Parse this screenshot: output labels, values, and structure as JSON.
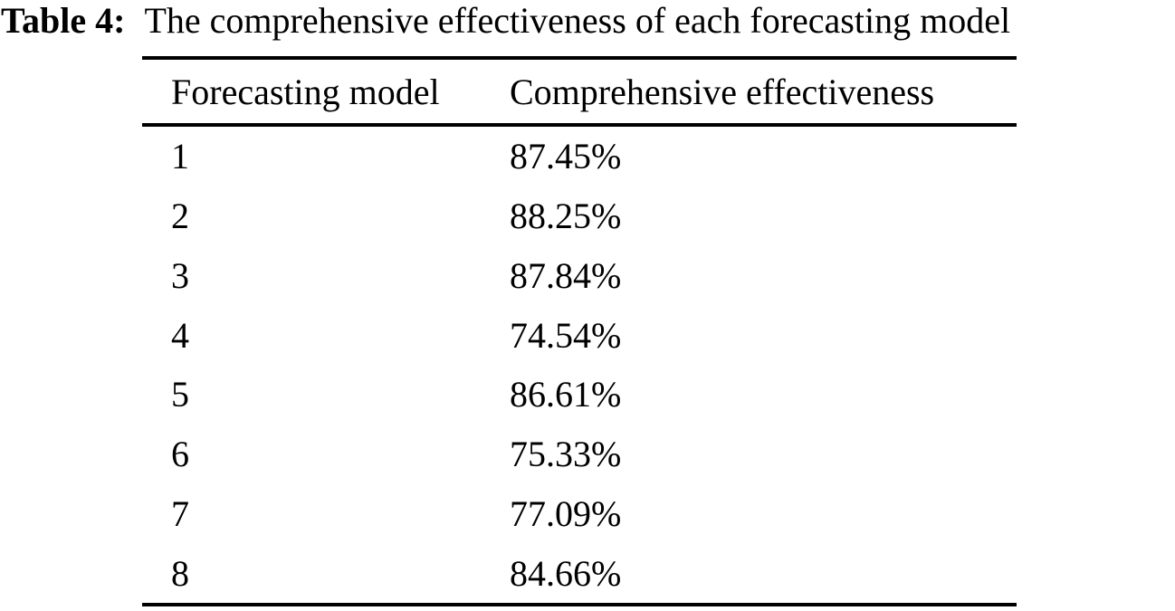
{
  "page": {
    "background": "#ffffff",
    "text_color": "#000000"
  },
  "caption": {
    "label": "Table 4:",
    "text": "The comprehensive effectiveness of each forecasting model"
  },
  "table": {
    "headers": [
      "Forecasting model",
      "Comprehensive effectiveness"
    ],
    "rows": [
      {
        "model": "1",
        "effectiveness": "87.45%"
      },
      {
        "model": "2",
        "effectiveness": "88.25%"
      },
      {
        "model": "3",
        "effectiveness": "87.84%"
      },
      {
        "model": "4",
        "effectiveness": "74.54%"
      },
      {
        "model": "5",
        "effectiveness": "86.61%"
      },
      {
        "model": "6",
        "effectiveness": "75.33%"
      },
      {
        "model": "7",
        "effectiveness": "77.09%"
      },
      {
        "model": "8",
        "effectiveness": "84.66%"
      }
    ]
  },
  "chart_data": {
    "type": "table",
    "title": "Table 4: The comprehensive effectiveness of each forecasting model",
    "columns": [
      "Forecasting model",
      "Comprehensive effectiveness"
    ],
    "rows": [
      [
        1,
        "87.45%"
      ],
      [
        2,
        "88.25%"
      ],
      [
        3,
        "87.84%"
      ],
      [
        4,
        "74.54%"
      ],
      [
        5,
        "86.61%"
      ],
      [
        6,
        "75.33%"
      ],
      [
        7,
        "77.09%"
      ],
      [
        8,
        "84.66%"
      ]
    ]
  }
}
